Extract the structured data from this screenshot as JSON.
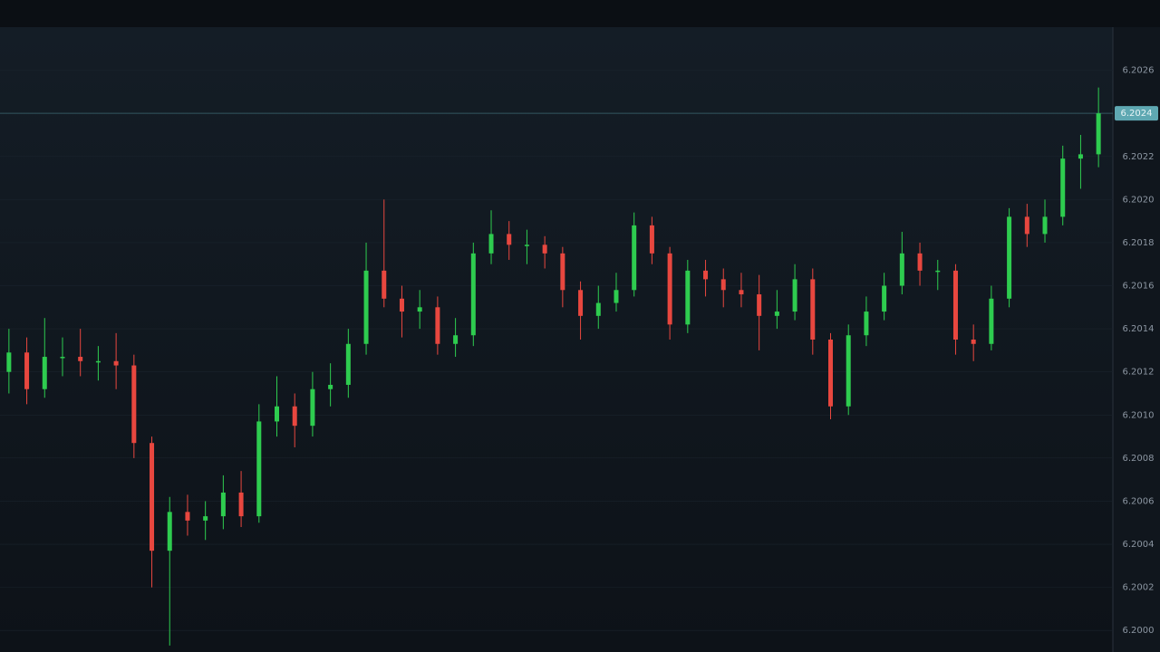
{
  "chart_data": {
    "type": "candlestick",
    "up_color": "#2ecc4f",
    "down_color": "#e8473f",
    "grid": true,
    "ylim": [
      6.1999,
      6.2028
    ],
    "yticks": [
      {
        "value": 6.2026,
        "label": "6.2026"
      },
      {
        "value": 6.2024,
        "label": "6.2024"
      },
      {
        "value": 6.2022,
        "label": "6.2022"
      },
      {
        "value": 6.202,
        "label": "6.2020"
      },
      {
        "value": 6.2018,
        "label": "6.2018"
      },
      {
        "value": 6.2016,
        "label": "6.2016"
      },
      {
        "value": 6.2014,
        "label": "6.2014"
      },
      {
        "value": 6.2012,
        "label": "6.2012"
      },
      {
        "value": 6.201,
        "label": "6.2010"
      },
      {
        "value": 6.2008,
        "label": "6.2008"
      },
      {
        "value": 6.2006,
        "label": "6.2006"
      },
      {
        "value": 6.2004,
        "label": "6.2004"
      },
      {
        "value": 6.2002,
        "label": "6.2002"
      },
      {
        "value": 6.2,
        "label": "6.2000"
      }
    ],
    "last_price": {
      "value": 6.2024,
      "label": "6.2024"
    },
    "open": [
      6.2012,
      6.20129,
      6.20112,
      6.20127,
      6.20127,
      6.20125,
      6.20125,
      6.20123,
      6.20087,
      6.20037,
      6.20055,
      6.20051,
      6.20053,
      6.20064,
      6.20053,
      6.20097,
      6.20104,
      6.20095,
      6.20112,
      6.20114,
      6.20133,
      6.20167,
      6.20154,
      6.20148,
      6.2015,
      6.20133,
      6.20137,
      6.20175,
      6.20184,
      6.20179,
      6.20179,
      6.20175,
      6.20158,
      6.20146,
      6.20152,
      6.20158,
      6.20188,
      6.20175,
      6.20142,
      6.20167,
      6.20163,
      6.20158,
      6.20156,
      6.20146,
      6.20148,
      6.20163,
      6.20135,
      6.20104,
      6.20137,
      6.20148,
      6.2016,
      6.20175,
      6.20167,
      6.20167,
      6.20135,
      6.20133,
      6.20154,
      6.20192,
      6.20184,
      6.20192,
      6.20219,
      6.20221
    ],
    "high": [
      6.2014,
      6.20136,
      6.20145,
      6.20136,
      6.2014,
      6.20132,
      6.20138,
      6.20128,
      6.2009,
      6.20062,
      6.20063,
      6.2006,
      6.20072,
      6.20074,
      6.20105,
      6.20118,
      6.2011,
      6.2012,
      6.20124,
      6.2014,
      6.2018,
      6.202,
      6.2016,
      6.20158,
      6.20155,
      6.20145,
      6.2018,
      6.20195,
      6.2019,
      6.20186,
      6.20183,
      6.20178,
      6.20162,
      6.2016,
      6.20166,
      6.20194,
      6.20192,
      6.20178,
      6.20172,
      6.20172,
      6.20168,
      6.20166,
      6.20165,
      6.20158,
      6.2017,
      6.20168,
      6.20138,
      6.20142,
      6.20155,
      6.20166,
      6.20185,
      6.2018,
      6.20172,
      6.2017,
      6.20142,
      6.2016,
      6.20196,
      6.20198,
      6.202,
      6.20225,
      6.2023,
      6.20252
    ],
    "low": [
      6.2011,
      6.20105,
      6.20108,
      6.20118,
      6.20118,
      6.20116,
      6.20112,
      6.2008,
      6.2002,
      6.19993,
      6.20044,
      6.20042,
      6.20047,
      6.20048,
      6.2005,
      6.2009,
      6.20085,
      6.2009,
      6.20104,
      6.20108,
      6.20128,
      6.2015,
      6.20136,
      6.2014,
      6.20128,
      6.20127,
      6.20132,
      6.2017,
      6.20172,
      6.2017,
      6.20168,
      6.2015,
      6.20135,
      6.2014,
      6.20148,
      6.20155,
      6.2017,
      6.20135,
      6.20138,
      6.20155,
      6.2015,
      6.2015,
      6.2013,
      6.2014,
      6.20144,
      6.20128,
      6.20098,
      6.201,
      6.20132,
      6.20144,
      6.20156,
      6.2016,
      6.20158,
      6.20128,
      6.20125,
      6.2013,
      6.2015,
      6.20178,
      6.2018,
      6.20188,
      6.20205,
      6.20215
    ],
    "close": [
      6.20129,
      6.20112,
      6.20127,
      6.20127,
      6.20125,
      6.20125,
      6.20123,
      6.20087,
      6.20037,
      6.20055,
      6.20051,
      6.20053,
      6.20064,
      6.20053,
      6.20097,
      6.20104,
      6.20095,
      6.20112,
      6.20114,
      6.20133,
      6.20167,
      6.20154,
      6.20148,
      6.2015,
      6.20133,
      6.20137,
      6.20175,
      6.20184,
      6.20179,
      6.20179,
      6.20175,
      6.20158,
      6.20146,
      6.20152,
      6.20158,
      6.20188,
      6.20175,
      6.20142,
      6.20167,
      6.20163,
      6.20158,
      6.20156,
      6.20146,
      6.20148,
      6.20163,
      6.20135,
      6.20104,
      6.20137,
      6.20148,
      6.2016,
      6.20175,
      6.20167,
      6.20167,
      6.20135,
      6.20133,
      6.20154,
      6.20192,
      6.20184,
      6.20192,
      6.20219,
      6.20221,
      6.2024
    ]
  }
}
